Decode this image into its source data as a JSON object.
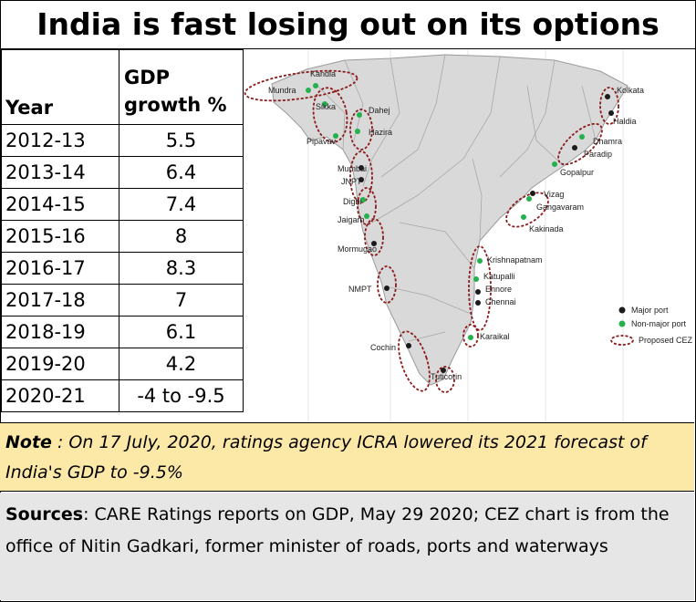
{
  "title": "India is fast losing out on its options",
  "table": {
    "headers": {
      "year": "Year",
      "gdp_line1": "GDP",
      "gdp_line2": "growth %"
    },
    "rows": [
      {
        "year": "2012-13",
        "value": "5.5"
      },
      {
        "year": "2013-14",
        "value": "6.4"
      },
      {
        "year": "2014-15",
        "value": "7.4"
      },
      {
        "year": "2015-16",
        "value": "8"
      },
      {
        "year": "2016-17",
        "value": "8.3"
      },
      {
        "year": "2017-18",
        "value": "7"
      },
      {
        "year": "2018-19",
        "value": "6.1"
      },
      {
        "year": "2019-20",
        "value": "4.2"
      },
      {
        "year": "2020-21",
        "value": "-4 to -9.5"
      }
    ]
  },
  "chart_data": {
    "type": "table",
    "columns": [
      "Year",
      "GDP growth %"
    ],
    "categories": [
      "2012-13",
      "2013-14",
      "2014-15",
      "2015-16",
      "2016-17",
      "2017-18",
      "2018-19",
      "2019-20",
      "2020-21"
    ],
    "values": [
      "5.5",
      "6.4",
      "7.4",
      "8",
      "8.3",
      "7",
      "6.1",
      "4.2",
      "-4 to -9.5"
    ]
  },
  "map": {
    "ports": [
      {
        "name": "Kandla",
        "type": "non-major"
      },
      {
        "name": "Mundra",
        "type": "non-major"
      },
      {
        "name": "Sikka",
        "type": "non-major"
      },
      {
        "name": "Pipavav",
        "type": "non-major"
      },
      {
        "name": "Dahej",
        "type": "non-major"
      },
      {
        "name": "Hazira",
        "type": "non-major"
      },
      {
        "name": "Mumbai",
        "type": "major"
      },
      {
        "name": "JNPT",
        "type": "major"
      },
      {
        "name": "Dighi",
        "type": "non-major"
      },
      {
        "name": "Jaigarh",
        "type": "non-major"
      },
      {
        "name": "Mormugao",
        "type": "major"
      },
      {
        "name": "NMPT",
        "type": "major"
      },
      {
        "name": "Cochin",
        "type": "major"
      },
      {
        "name": "Tuticorin",
        "type": "major"
      },
      {
        "name": "Karaikal",
        "type": "non-major"
      },
      {
        "name": "Chennai",
        "type": "major"
      },
      {
        "name": "Ennore",
        "type": "major"
      },
      {
        "name": "Katupalli",
        "type": "non-major"
      },
      {
        "name": "Krishnapatnam",
        "type": "non-major"
      },
      {
        "name": "Kakinada",
        "type": "non-major"
      },
      {
        "name": "Gangavaram",
        "type": "non-major"
      },
      {
        "name": "Vizag",
        "type": "major"
      },
      {
        "name": "Gopalpur",
        "type": "non-major"
      },
      {
        "name": "Paradip",
        "type": "major"
      },
      {
        "name": "Dhamra",
        "type": "non-major"
      },
      {
        "name": "Haldia",
        "type": "major"
      },
      {
        "name": "Kolkata",
        "type": "major"
      }
    ],
    "legend": {
      "major": "Major port",
      "non_major": "Non-major port",
      "cez": "Proposed CEZ"
    },
    "colors": {
      "major": "#1a1a1a",
      "non_major": "#22b14c",
      "cez": "#8b1a1a",
      "land": "#d9d9d9",
      "border": "#9a9a9a"
    }
  },
  "note": {
    "label": "Note",
    "text": " : On 17 July, 2020, ratings agency ICRA lowered its 2021 forecast of India's GDP to -9.5%"
  },
  "sources": {
    "label": "Sources",
    "text": ": CARE Ratings reports on GDP, May 29 2020; CEZ chart is from the office of Nitin Gadkari, former minister of roads, ports and waterways"
  }
}
